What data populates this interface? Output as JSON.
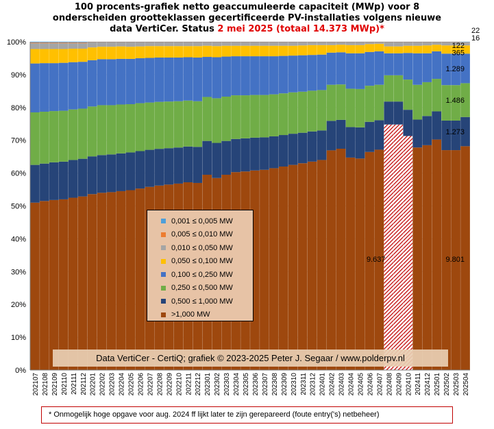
{
  "title": {
    "line1": "100 procents-grafiek netto geaccumuleerde capaciteit (MWp) voor 8",
    "line2": "onderscheiden grootteklassen gecertificeerde PV-installaties volgens nieuwe",
    "line3_pre": "data VertiCer. Status ",
    "line3_highlight": "2 mei 2025 (totaal 14.373 MWp)*"
  },
  "credit": "Data VertiCer - CertiQ; grafiek © 2023-2025 Peter J. Segaar / www.polderpv.nl",
  "footnote": "* Onmogelijk hoge opgave voor aug. 2024 ff lijkt later te zijn gerepareerd (foute entry('s) netbeheer)",
  "legend": [
    {
      "label": "0,001 ≤  0,005 MW",
      "color": "#4f9fd9"
    },
    {
      "label": "0,005 ≤  0,010 MW",
      "color": "#ed7d31"
    },
    {
      "label": "0,010 ≤  0,050 MW",
      "color": "#a5a5a5"
    },
    {
      "label": "0,050 ≤  0,100 MW",
      "color": "#ffc000"
    },
    {
      "label": "0,100 ≤  0,250 MW",
      "color": "#4472c4"
    },
    {
      "label": "0,250 ≤  0,500 MW",
      "color": "#70ad47"
    },
    {
      "label": "0,500 ≤  1,000 MW",
      "color": "#264478"
    },
    {
      "label": ">1,000 MW",
      "color": "#9e480e"
    }
  ],
  "chart_data": {
    "type": "bar",
    "stacked": true,
    "normalized": true,
    "ylim": [
      0,
      100
    ],
    "yticks": [
      "0%",
      "10%",
      "20%",
      "30%",
      "40%",
      "50%",
      "60%",
      "70%",
      "80%",
      "90%",
      "100%"
    ],
    "hatched_categories": [
      "202408",
      "202409",
      "202410"
    ],
    "categories": [
      "202107",
      "202108",
      "202109",
      "202110",
      "202111",
      "202112",
      "202201",
      "202202",
      "202203",
      "202204",
      "202205",
      "202206",
      "202207",
      "202208",
      "202209",
      "202210",
      "202211",
      "202212",
      "202301",
      "202302",
      "202303",
      "202304",
      "202305",
      "202306",
      "202307",
      "202308",
      "202309",
      "202310",
      "202311",
      "202312",
      "202401",
      "202402",
      "202403",
      "202404",
      "202405",
      "202406",
      "202407",
      "202408",
      "202409",
      "202410",
      "202411",
      "202412",
      "202501",
      "202502",
      "202503",
      "202504"
    ],
    "series": [
      {
        "name": ">1,000 MW",
        "color": "#9e480e",
        "values": [
          51.0,
          51.5,
          51.8,
          52.0,
          52.5,
          53.0,
          53.6,
          54.0,
          54.2,
          54.5,
          54.8,
          55.3,
          55.8,
          56.2,
          56.5,
          56.8,
          57.2,
          57.0,
          59.5,
          58.5,
          59.5,
          60.3,
          60.5,
          60.8,
          61.0,
          61.5,
          62.0,
          62.5,
          63.0,
          63.5,
          64.0,
          67.0,
          67.5,
          64.8,
          64.5,
          66.5,
          67.2,
          74.8,
          74.8,
          71.3,
          67.8,
          68.5,
          70.3,
          67.0,
          67.0,
          68.2
        ]
      },
      {
        "name": "0,500 ≤  1,000 MW",
        "color": "#264478",
        "values": [
          11.5,
          11.4,
          11.5,
          11.5,
          11.5,
          11.5,
          11.5,
          11.5,
          11.5,
          11.5,
          11.5,
          11.4,
          11.3,
          11.2,
          11.1,
          11.0,
          10.9,
          11.0,
          10.3,
          10.7,
          10.3,
          10.1,
          10.1,
          10.0,
          9.9,
          9.7,
          9.6,
          9.5,
          9.3,
          9.2,
          9.0,
          9.0,
          8.8,
          9.3,
          9.5,
          9.2,
          9.0,
          7.0,
          7.0,
          8.0,
          8.5,
          8.9,
          8.6,
          9.0,
          9.0,
          8.9
        ]
      },
      {
        "name": "0,250 ≤  0,500 MW",
        "color": "#70ad47",
        "values": [
          16.0,
          15.8,
          15.6,
          15.5,
          15.4,
          15.3,
          15.2,
          15.2,
          15.0,
          14.9,
          14.7,
          14.6,
          14.4,
          14.3,
          14.2,
          14.1,
          14.0,
          13.9,
          13.4,
          13.6,
          13.5,
          13.3,
          13.1,
          13.0,
          12.9,
          12.8,
          12.7,
          12.6,
          12.5,
          12.4,
          12.3,
          11.0,
          10.8,
          11.7,
          11.7,
          11.0,
          10.8,
          8.0,
          8.0,
          9.2,
          10.6,
          10.3,
          9.9,
          10.8,
          10.8,
          10.3
        ]
      },
      {
        "name": "0,100 ≤  0,250 MW",
        "color": "#4472c4",
        "values": [
          14.9,
          14.8,
          14.6,
          14.6,
          14.4,
          14.3,
          14.1,
          14.0,
          14.0,
          13.9,
          13.8,
          13.7,
          13.6,
          13.5,
          13.4,
          13.3,
          13.2,
          13.3,
          12.2,
          12.5,
          12.2,
          11.9,
          11.9,
          11.8,
          11.8,
          11.6,
          11.4,
          11.2,
          11.1,
          10.9,
          10.8,
          9.8,
          9.8,
          10.8,
          10.9,
          10.3,
          10.2,
          6.7,
          6.7,
          8.1,
          9.6,
          8.8,
          8.4,
          9.6,
          9.6,
          9.0
        ]
      },
      {
        "name": "0,050 ≤  0,100 MW",
        "color": "#ffc000",
        "values": [
          4.4,
          4.3,
          4.3,
          4.2,
          4.1,
          4.0,
          3.9,
          3.8,
          3.8,
          3.8,
          3.7,
          3.6,
          3.6,
          3.5,
          3.5,
          3.5,
          3.4,
          3.5,
          3.4,
          3.4,
          3.3,
          3.2,
          3.2,
          3.2,
          3.2,
          3.2,
          3.1,
          3.0,
          3.0,
          3.0,
          2.9,
          2.3,
          2.3,
          2.5,
          2.5,
          2.4,
          2.3,
          2.1,
          2.1,
          2.2,
          2.3,
          2.4,
          2.0,
          2.5,
          2.5,
          2.5
        ]
      },
      {
        "name": "0,010 ≤  0,050 MW",
        "color": "#a5a5a5",
        "values": [
          1.8,
          1.8,
          1.8,
          1.8,
          1.7,
          1.7,
          1.5,
          1.3,
          1.3,
          1.2,
          1.3,
          1.2,
          1.1,
          1.1,
          1.1,
          1.1,
          1.1,
          1.1,
          1.0,
          1.1,
          1.0,
          1.0,
          1.0,
          1.0,
          1.0,
          1.0,
          1.0,
          1.0,
          0.9,
          0.8,
          0.8,
          0.8,
          0.7,
          0.8,
          0.8,
          0.5,
          0.4,
          1.2,
          1.2,
          1.0,
          1.0,
          0.9,
          0.7,
          0.9,
          0.9,
          0.85
        ]
      },
      {
        "name": "0,005 ≤  0,010 MW",
        "color": "#ed7d31",
        "values": [
          0.2,
          0.2,
          0.2,
          0.2,
          0.2,
          0.2,
          0.1,
          0.1,
          0.1,
          0.1,
          0.1,
          0.1,
          0.1,
          0.1,
          0.1,
          0.1,
          0.1,
          0.1,
          0.1,
          0.1,
          0.1,
          0.1,
          0.1,
          0.1,
          0.1,
          0.1,
          0.1,
          0.1,
          0.1,
          0.1,
          0.1,
          0.1,
          0.1,
          0.1,
          0.1,
          0.1,
          0.1,
          0.1,
          0.1,
          0.1,
          0.1,
          0.1,
          0.1,
          0.1,
          0.1,
          0.11
        ]
      },
      {
        "name": "0,001 ≤  0,005 MW",
        "color": "#4f9fd9",
        "values": [
          0.2,
          0.2,
          0.2,
          0.2,
          0.2,
          0.2,
          0.1,
          0.1,
          0.1,
          0.1,
          0.1,
          0.1,
          0.1,
          0.1,
          0.1,
          0.1,
          0.1,
          0.1,
          0.1,
          0.1,
          0.1,
          0.1,
          0.1,
          0.1,
          0.1,
          0.1,
          0.1,
          0.1,
          0.1,
          0.1,
          0.1,
          0.1,
          0.1,
          0.1,
          0.1,
          0.1,
          0.1,
          0.1,
          0.1,
          0.1,
          0.1,
          0.1,
          0.1,
          0.1,
          0.1,
          0.15
        ]
      }
    ],
    "data_labels": [
      {
        "category": "202504",
        "series": ">1,000 MW",
        "text": "9.801"
      },
      {
        "category": "202504",
        "series": "0,500 ≤  1,000 MW",
        "text": "1.273"
      },
      {
        "category": "202504",
        "series": "0,250 ≤  0,500 MW",
        "text": "1.486"
      },
      {
        "category": "202504",
        "series": "0,100 ≤  0,250 MW",
        "text": "1.289"
      },
      {
        "category": "202504",
        "series": "0,050 ≤  0,100 MW",
        "text": "365"
      },
      {
        "category": "202504",
        "series": "0,010 ≤  0,050 MW",
        "text": "122"
      },
      {
        "category": "202504",
        "series": "0,005 ≤  0,010 MW",
        "text": "16"
      },
      {
        "category": "202504",
        "series": "0,001 ≤  0,005 MW",
        "text": "22"
      },
      {
        "category": "202408",
        "series": ">1,000 MW",
        "text": "9.637"
      }
    ]
  }
}
